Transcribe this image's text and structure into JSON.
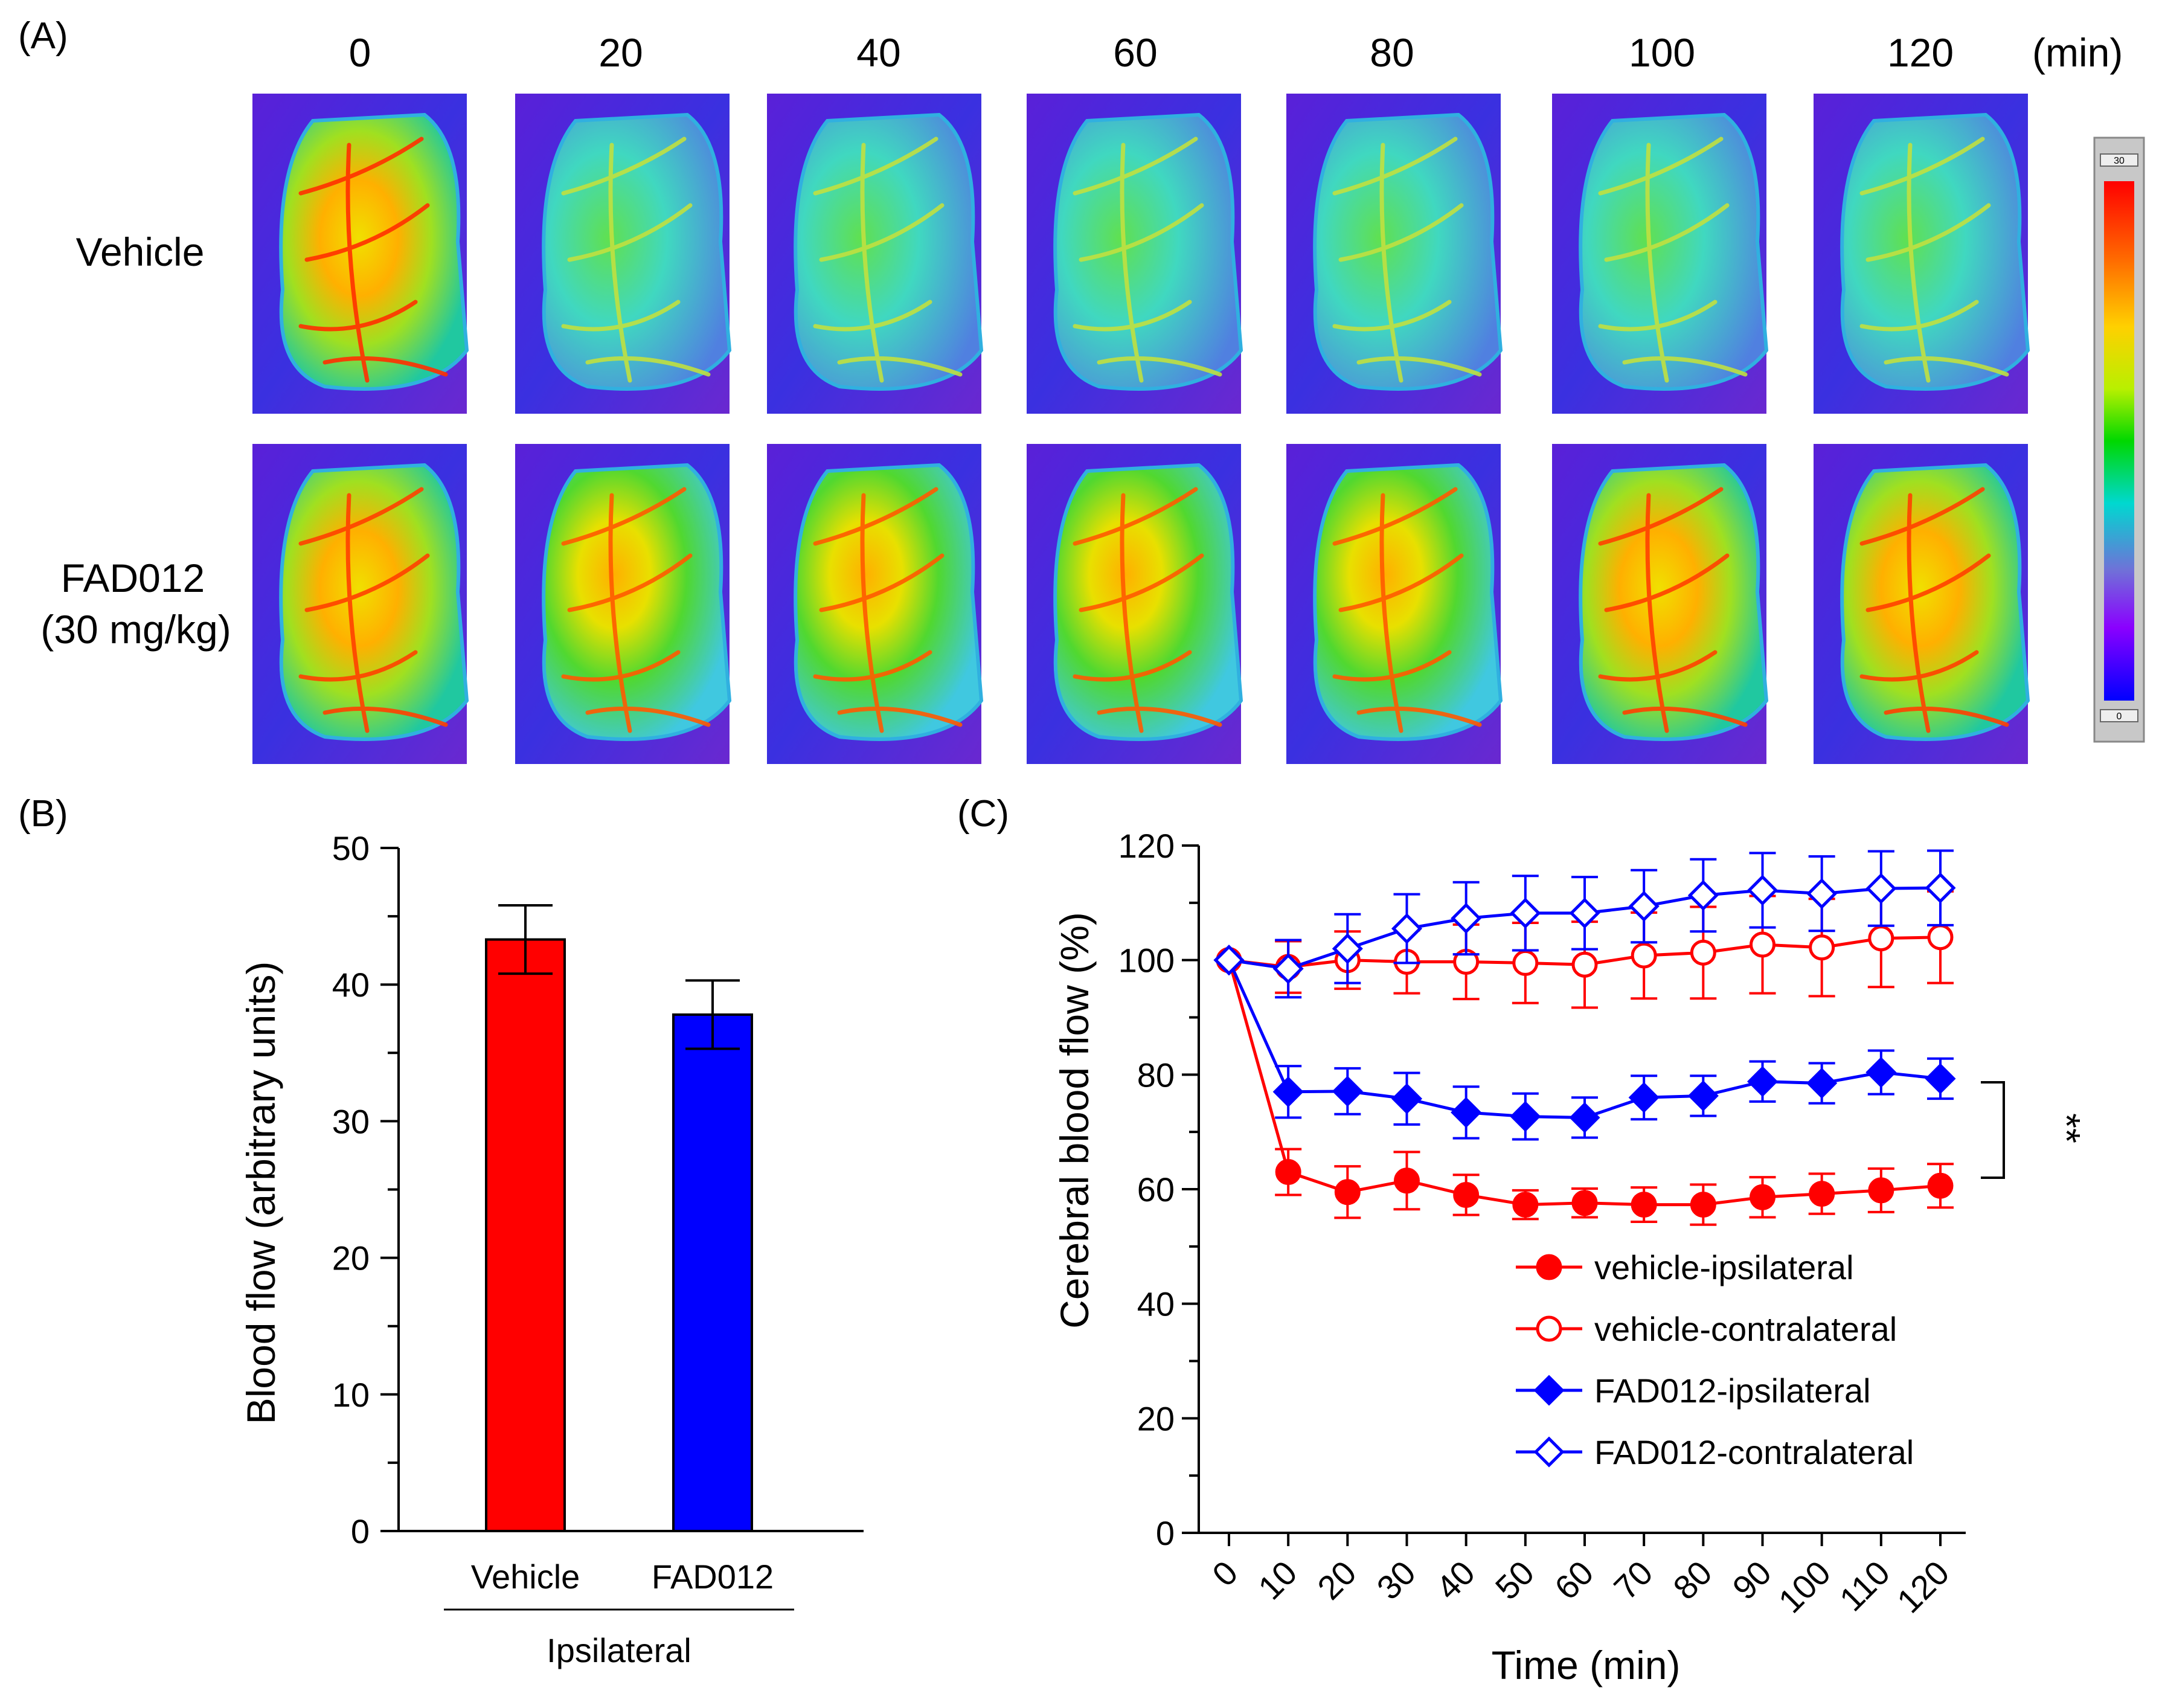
{
  "panel_a": {
    "label": "(A)",
    "time_points": [
      "0",
      "20",
      "40",
      "60",
      "80",
      "100",
      "120"
    ],
    "unit_label": "(min)",
    "rows": [
      {
        "label_lines": [
          "Vehicle"
        ]
      },
      {
        "label_lines": [
          "FAD012",
          "(30 mg/kg)"
        ]
      }
    ],
    "colorbar": {
      "max_label": "30",
      "min_label": "0"
    }
  },
  "panel_b": {
    "label": "(B)",
    "chart_data": {
      "type": "bar",
      "categories": [
        "Vehicle",
        "FAD012"
      ],
      "values": [
        43.3,
        37.8
      ],
      "errors": [
        2.5,
        2.5
      ],
      "colors": [
        "#ff0000",
        "#0000ff"
      ],
      "ylabel": "Blood flow (arbitrary units)",
      "xlabel": "",
      "group_label": "Ipsilateral",
      "ylim": [
        0,
        50
      ],
      "yticks": [
        0,
        10,
        20,
        30,
        40,
        50
      ]
    }
  },
  "panel_c": {
    "label": "(C)",
    "chart_data": {
      "type": "line",
      "x": [
        0,
        10,
        20,
        30,
        40,
        50,
        60,
        70,
        80,
        90,
        100,
        110,
        120
      ],
      "xlabel": "Time (min)",
      "ylabel": "Cerebral blood flow (%)",
      "ylim": [
        0,
        120
      ],
      "yticks": [
        0,
        20,
        40,
        60,
        80,
        100,
        120
      ],
      "series": [
        {
          "name": "vehicle-ipsilateral",
          "color": "#ff0000",
          "marker": "circle",
          "filled": true,
          "values": [
            100,
            63,
            59.5,
            61.5,
            59,
            57.3,
            57.6,
            57.3,
            57.3,
            58.6,
            59.2,
            59.8,
            60.6
          ],
          "errors": [
            0,
            4,
            4.5,
            5,
            3.5,
            2.5,
            2.5,
            3,
            3.5,
            3.5,
            3.5,
            3.8,
            3.8
          ]
        },
        {
          "name": "vehicle-contralateral",
          "color": "#ff0000",
          "marker": "circle",
          "filled": false,
          "values": [
            100,
            98.8,
            100,
            99.7,
            99.7,
            99.5,
            99.2,
            100.8,
            101.3,
            102.7,
            102.2,
            103.8,
            104
          ],
          "errors": [
            0,
            4.5,
            5,
            5.5,
            6.5,
            7,
            7.5,
            7.5,
            8,
            8.5,
            8.5,
            8.5,
            8
          ]
        },
        {
          "name": "FAD012-ipsilateral",
          "color": "#0000ff",
          "marker": "diamond",
          "filled": true,
          "values": [
            100,
            77,
            77.1,
            75.8,
            73.4,
            72.7,
            72.5,
            76,
            76.3,
            78.8,
            78.5,
            80.4,
            79.3
          ],
          "errors": [
            0,
            4.5,
            4,
            4.5,
            4.5,
            4,
            3.5,
            3.8,
            3.5,
            3.5,
            3.5,
            3.8,
            3.5
          ]
        },
        {
          "name": "FAD012-contralateral",
          "color": "#0000ff",
          "marker": "diamond",
          "filled": false,
          "values": [
            100,
            98.5,
            102,
            105.5,
            107.3,
            108.2,
            108.2,
            109.4,
            111.3,
            112.2,
            111.6,
            112.5,
            112.6
          ],
          "errors": [
            0,
            5,
            6,
            6,
            6.3,
            6.5,
            6.3,
            6.3,
            6.3,
            6.5,
            6.5,
            6.5,
            6.5
          ]
        }
      ],
      "significance": "**"
    }
  }
}
